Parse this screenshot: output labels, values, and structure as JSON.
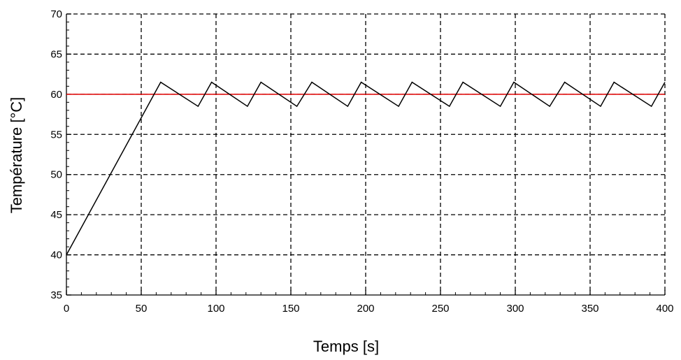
{
  "chart_data": {
    "type": "line",
    "title": "",
    "xlabel": "Temps [s]",
    "ylabel": "Température [°C]",
    "xlim": [
      0,
      400
    ],
    "ylim": [
      35,
      70
    ],
    "xticks": [
      0,
      50,
      100,
      150,
      200,
      250,
      300,
      350,
      400
    ],
    "yticks": [
      35,
      40,
      45,
      50,
      55,
      60,
      65,
      70
    ],
    "grid": true,
    "grid_style": "dashed",
    "series": [
      {
        "color": "#000000",
        "x": [
          0,
          63,
          88,
          97,
          121,
          130,
          154,
          164,
          188,
          197,
          222,
          231,
          256,
          265,
          290,
          299,
          323,
          333,
          357,
          366,
          391,
          400
        ],
        "y": [
          40,
          61.5,
          58.5,
          61.5,
          58.5,
          61.5,
          58.5,
          61.5,
          58.5,
          61.5,
          58.5,
          61.5,
          58.5,
          61.5,
          58.5,
          61.5,
          58.5,
          61.5,
          58.5,
          61.5,
          58.5,
          61.5
        ]
      },
      {
        "color": "#e00000",
        "x": [
          0,
          400
        ],
        "y": [
          60,
          60
        ]
      }
    ]
  }
}
